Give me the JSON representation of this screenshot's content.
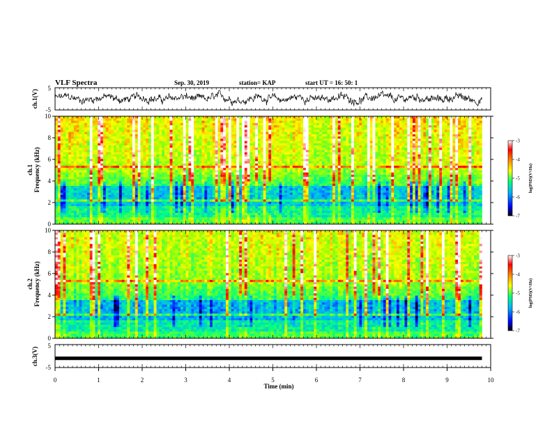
{
  "header": {
    "title": "VLF Spectra",
    "date": "Sep. 30, 2019",
    "station": "station= KAP",
    "start": "start  UT =   16: 50: 1"
  },
  "chart_data": [
    {
      "type": "line",
      "name": "ch1-waveform",
      "ylabel": "ch.1(V)",
      "ylim": [
        -5,
        5
      ],
      "yticks": [
        "5",
        "-5"
      ],
      "xlim": [
        0,
        10
      ],
      "trace": {
        "mean": 0.2,
        "amplitude": 2.2,
        "color": "#000000"
      }
    },
    {
      "type": "heatmap",
      "name": "ch1-spectrogram",
      "ylabel_lines": [
        "ch.1",
        "Frequency (kHz)"
      ],
      "ylim": [
        0,
        10
      ],
      "yticks": [
        "0",
        "2",
        "4",
        "6",
        "8",
        "10"
      ],
      "xlim": [
        0,
        9.8
      ],
      "colorbar": {
        "label": "log(PSD)(V²/Hz)",
        "range": [
          -7,
          -3
        ],
        "ticks": [
          "-3",
          "-4",
          "-5",
          "-6",
          "-7"
        ]
      }
    },
    {
      "type": "heatmap",
      "name": "ch2-spectrogram",
      "ylabel_lines": [
        "ch.2",
        "Frequency (kHz)"
      ],
      "ylim": [
        0,
        10
      ],
      "yticks": [
        "0",
        "2",
        "4",
        "6",
        "8",
        "10"
      ],
      "xlim": [
        0,
        9.8
      ],
      "colorbar": {
        "label": "log(PSD)(V²/Hz)",
        "range": [
          -7,
          -3
        ],
        "ticks": [
          "-3",
          "-4",
          "-5",
          "-6",
          "-7"
        ]
      }
    },
    {
      "type": "line",
      "name": "ch3-waveform",
      "ylabel": "ch.3(V)",
      "ylim": [
        -5,
        5
      ],
      "yticks": [
        "5",
        "-5"
      ],
      "xlim": [
        0,
        10
      ],
      "trace": {
        "value": -1.0,
        "color": "#000000"
      }
    }
  ],
  "x_axis": {
    "label": "Time (min)",
    "range": [
      0,
      10
    ],
    "ticks": [
      "0",
      "1",
      "2",
      "3",
      "4",
      "5",
      "6",
      "7",
      "8",
      "9",
      "10"
    ]
  },
  "colormap": [
    "#000000",
    "#0000ff",
    "#00b0ff",
    "#00ff80",
    "#a0ff00",
    "#ffff00",
    "#ff8000",
    "#ff0000",
    "#ffffff"
  ]
}
